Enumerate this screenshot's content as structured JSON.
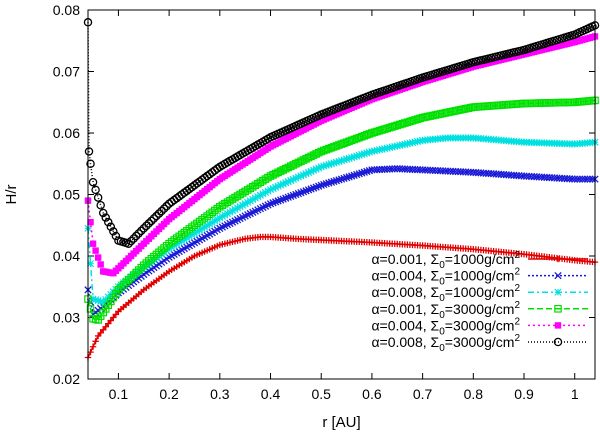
{
  "chart_data": {
    "type": "line",
    "title": "",
    "xlabel": "r [AU]",
    "ylabel": "H/r",
    "xlim": [
      0.04,
      1.04
    ],
    "ylim": [
      0.02,
      0.08
    ],
    "xticks": [
      0.1,
      0.2,
      0.3,
      0.4,
      0.5,
      0.6,
      0.7,
      0.8,
      0.9,
      1
    ],
    "xtick_labels": [
      "0.1",
      "0.2",
      "0.3",
      "0.4",
      "0.5",
      "0.6",
      "0.7",
      "0.8",
      "0.9",
      "1"
    ],
    "yticks": [
      0.02,
      0.03,
      0.04,
      0.05,
      0.06,
      0.07,
      0.08
    ],
    "ytick_labels": [
      "0.02",
      "0.03",
      "0.04",
      "0.05",
      "0.06",
      "0.07",
      "0.08"
    ],
    "legend_position": "bottom-right",
    "series": [
      {
        "name_main": "α=0.001, Σ",
        "name_sub": "0",
        "name_rest": "=1000g/cm",
        "name_sup": "2",
        "color": "#e00000",
        "marker": "plus",
        "dash": "",
        "x": [
          0.04,
          0.06,
          0.1,
          0.15,
          0.2,
          0.25,
          0.3,
          0.35,
          0.38,
          0.4,
          0.45,
          0.5,
          0.6,
          0.7,
          0.8,
          0.9,
          1.0,
          1.04
        ],
        "y": [
          0.0235,
          0.027,
          0.031,
          0.0345,
          0.0375,
          0.04,
          0.0418,
          0.0428,
          0.0431,
          0.0431,
          0.0428,
          0.0426,
          0.0422,
          0.0417,
          0.0411,
          0.0403,
          0.0393,
          0.039
        ]
      },
      {
        "name_main": "α=0.004, Σ",
        "name_sub": "0",
        "name_rest": "=1000g/cm",
        "name_sup": "2",
        "color": "#1a1ad6",
        "marker": "cross",
        "dash": "2,2",
        "x": [
          0.04,
          0.05,
          0.07,
          0.1,
          0.15,
          0.2,
          0.3,
          0.4,
          0.5,
          0.6,
          0.65,
          0.7,
          0.8,
          0.9,
          1.0,
          1.04
        ],
        "y": [
          0.0345,
          0.0305,
          0.0318,
          0.034,
          0.037,
          0.0398,
          0.0445,
          0.0485,
          0.0515,
          0.054,
          0.0542,
          0.054,
          0.0536,
          0.053,
          0.0525,
          0.0525
        ]
      },
      {
        "name_main": "α=0.008, Σ",
        "name_sub": "0",
        "name_rest": "=1000g/cm",
        "name_sup": "2",
        "color": "#00e0e0",
        "marker": "star",
        "dash": "6,3,2,3",
        "x": [
          0.04,
          0.05,
          0.07,
          0.1,
          0.15,
          0.2,
          0.3,
          0.4,
          0.5,
          0.6,
          0.7,
          0.75,
          0.8,
          0.9,
          1.0,
          1.04
        ],
        "y": [
          0.0445,
          0.033,
          0.0325,
          0.035,
          0.0382,
          0.0412,
          0.0462,
          0.0508,
          0.0545,
          0.057,
          0.0588,
          0.0592,
          0.0592,
          0.0585,
          0.0582,
          0.0585
        ]
      },
      {
        "name_main": "α=0.001, Σ",
        "name_sub": "0",
        "name_rest": "=3000g/cm",
        "name_sup": "2",
        "color": "#00e000",
        "marker": "square",
        "dash": "6,3",
        "x": [
          0.04,
          0.05,
          0.06,
          0.08,
          0.1,
          0.15,
          0.2,
          0.3,
          0.4,
          0.5,
          0.6,
          0.7,
          0.8,
          0.9,
          1.0,
          1.04
        ],
        "y": [
          0.033,
          0.0298,
          0.0296,
          0.032,
          0.0345,
          0.0385,
          0.042,
          0.048,
          0.053,
          0.057,
          0.06,
          0.0625,
          0.0642,
          0.0648,
          0.065,
          0.0653
        ]
      },
      {
        "name_main": "α=0.004, Σ",
        "name_sub": "0",
        "name_rest": "=3000g/cm",
        "name_sup": "2",
        "color": "#ff00ff",
        "marker": "filled-square",
        "dash": "2,3",
        "x": [
          0.04,
          0.05,
          0.07,
          0.09,
          0.1,
          0.15,
          0.2,
          0.3,
          0.4,
          0.5,
          0.6,
          0.7,
          0.8,
          0.9,
          1.0,
          1.04
        ],
        "y": [
          0.049,
          0.042,
          0.0375,
          0.0372,
          0.038,
          0.042,
          0.046,
          0.0525,
          0.0578,
          0.062,
          0.0655,
          0.0683,
          0.0708,
          0.0728,
          0.0748,
          0.0757
        ]
      },
      {
        "name_main": "α=0.008, Σ",
        "name_sub": "0",
        "name_rest": "=3000g/cm",
        "name_sup": "2",
        "color": "#000000",
        "marker": "circle",
        "dash": "1,2",
        "x": [
          0.04,
          0.042,
          0.045,
          0.05,
          0.07,
          0.1,
          0.12,
          0.15,
          0.2,
          0.3,
          0.4,
          0.5,
          0.6,
          0.7,
          0.8,
          0.9,
          1.0,
          1.04
        ],
        "y": [
          0.078,
          0.057,
          0.055,
          0.052,
          0.047,
          0.0425,
          0.042,
          0.0445,
          0.0485,
          0.0545,
          0.0593,
          0.063,
          0.0662,
          0.069,
          0.0715,
          0.0735,
          0.076,
          0.0775
        ]
      }
    ]
  }
}
